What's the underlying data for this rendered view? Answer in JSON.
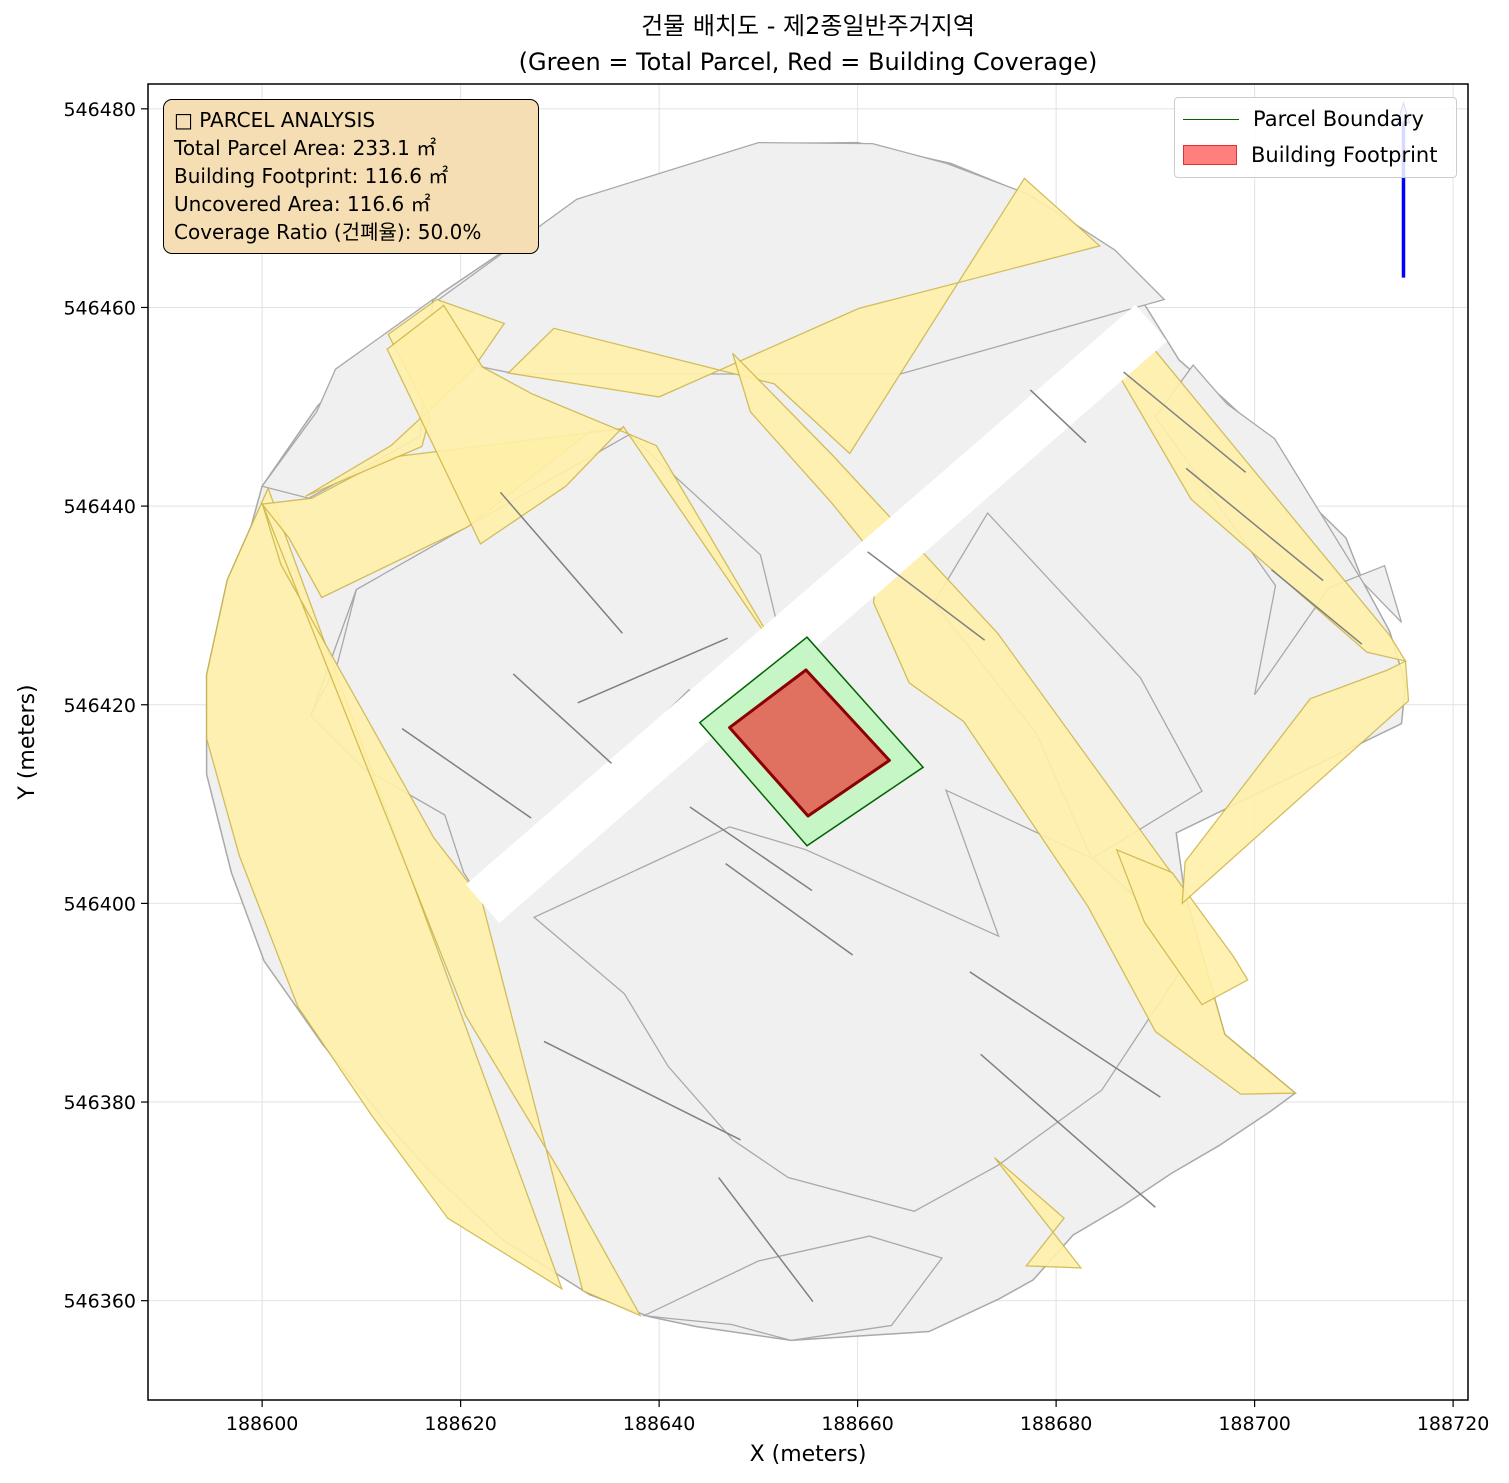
{
  "chart_data": {
    "type": "map",
    "title": "건물 배치도 - 제2종일반주거지역",
    "subtitle": "(Green = Total Parcel, Red = Building Coverage)",
    "xlabel": "X (meters)",
    "ylabel": "Y (meters)",
    "xlim": [
      188588.5,
      188721.5
    ],
    "ylim": [
      546350,
      546482.5
    ],
    "xticks": [
      188600,
      188620,
      188640,
      188660,
      188680,
      188700,
      188720
    ],
    "yticks": [
      546360,
      546380,
      546400,
      546420,
      546440,
      546460,
      546480
    ],
    "grid": true,
    "legend_position": "top-right",
    "legend": [
      {
        "label": "Parcel Boundary",
        "kind": "line",
        "color": "#006400"
      },
      {
        "label": "Building Footprint",
        "kind": "patch",
        "color": "#ff0000"
      }
    ],
    "info_box": {
      "lines": [
        "□ PARCEL ANALYSIS",
        "Total Parcel Area: 233.1 ㎡",
        "Building Footprint: 116.6 ㎡",
        "Uncovered Area: 116.6 ㎡",
        "Coverage Ratio (건폐율): 50.0%"
      ],
      "total_parcel_area_m2": 233.1,
      "building_footprint_m2": 116.6,
      "uncovered_area_m2": 116.6,
      "coverage_ratio_pct": 50.0
    },
    "colors": {
      "parcel_fill": "#c6f5c6",
      "parcel_edge": "#006400",
      "building_fill": "#e07060",
      "building_edge": "#8b0000",
      "road_fill": "#fff0a8",
      "road_edge": "#c8b040",
      "block_fill": "#f0f0f0",
      "block_edge": "#a9a9a9",
      "north_arrow": "#0000ff"
    },
    "target_parcel": [
      [
        188644.1,
        546418.2
      ],
      [
        188654.9,
        546426.8
      ],
      [
        188666.6,
        546413.7
      ],
      [
        188654.9,
        546405.8
      ]
    ],
    "building_footprint": [
      [
        188647.1,
        546417.7
      ],
      [
        188654.8,
        546423.5
      ],
      [
        188663.2,
        546414.4
      ],
      [
        188655.0,
        546408.8
      ]
    ],
    "context_outline": [
      [
        188594.4,
        546416.6
      ],
      [
        188594.4,
        546413.0
      ],
      [
        188596.9,
        546403.1
      ],
      [
        188600.2,
        546394.2
      ],
      [
        188606.1,
        546385.8
      ],
      [
        188613.5,
        546376.8
      ],
      [
        188616.9,
        546373.0
      ],
      [
        188624.3,
        546366.1
      ],
      [
        188633.0,
        546360.6
      ],
      [
        188639.0,
        546358.4
      ],
      [
        188643.7,
        546357.4
      ],
      [
        188653.3,
        546356.0
      ],
      [
        188667.2,
        546356.9
      ],
      [
        188674.3,
        546360.2
      ],
      [
        188677.7,
        546362.1
      ],
      [
        188681.7,
        546366.6
      ],
      [
        188686.8,
        546369.6
      ],
      [
        188691.6,
        546372.8
      ],
      [
        188696.4,
        546375.6
      ],
      [
        188701.5,
        546379.0
      ],
      [
        188704.1,
        546380.9
      ],
      [
        188697.0,
        546386.8
      ],
      [
        188692.9,
        546401.3
      ],
      [
        188692.1,
        546407.1
      ],
      [
        188714.8,
        546418.1
      ],
      [
        188715.2,
        546422.1
      ],
      [
        188713.6,
        546427.4
      ],
      [
        188711.0,
        546432.2
      ],
      [
        188709.2,
        546436.8
      ],
      [
        188704.9,
        546441.0
      ],
      [
        188701.1,
        546446.9
      ],
      [
        188696.9,
        546450.8
      ],
      [
        188692.4,
        546454.7
      ],
      [
        188689.1,
        546460.0
      ],
      [
        188685.2,
        546465.5
      ],
      [
        188677.0,
        546471.4
      ],
      [
        188669.4,
        546474.5
      ],
      [
        188660.0,
        546476.6
      ],
      [
        188650.2,
        546476.5
      ],
      [
        188632.2,
        546471.0
      ],
      [
        188618.0,
        546461.4
      ],
      [
        188613.0,
        546457.2
      ],
      [
        188605.6,
        546450.1
      ],
      [
        188600.0,
        546442.0
      ],
      [
        188598.9,
        546438.0
      ],
      [
        188596.5,
        546432.6
      ],
      [
        188594.4,
        546423.0
      ]
    ],
    "blocks": [
      [
        [
          188638.5,
          546358.5
        ],
        [
          188641.2,
          546358.2
        ],
        [
          188647.3,
          546357.6
        ],
        [
          188653.3,
          546356.0
        ],
        [
          188663.4,
          546357.5
        ],
        [
          188668.5,
          546364.3
        ],
        [
          188661.2,
          546366.5
        ],
        [
          188650.0,
          546364.0
        ]
      ],
      [
        [
          188615.9,
          546447.0
        ],
        [
          188617.2,
          546460.8
        ],
        [
          188607.4,
          546453.8
        ],
        [
          188605.5,
          546449.5
        ],
        [
          188600.0,
          546442.0
        ],
        [
          188604.7,
          546440.8
        ]
      ],
      [
        [
          188625.6,
          546453.3
        ],
        [
          188621.7,
          546454.1
        ],
        [
          188617.8,
          546460.8
        ],
        [
          188631.7,
          546470.9
        ],
        [
          188650.0,
          546476.6
        ],
        [
          188661.5,
          546476.5
        ],
        [
          188669.0,
          546474.5
        ],
        [
          188677.2,
          546471.4
        ],
        [
          188685.9,
          546465.8
        ],
        [
          188690.9,
          546460.8
        ],
        [
          188664.3,
          546453.3
        ],
        [
          188649.7,
          546453.3
        ]
      ],
      [
        [
          188700.0,
          546421.0
        ],
        [
          188707.5,
          546431.8
        ],
        [
          188713.1,
          546434.0
        ],
        [
          188714.8,
          546428.3
        ],
        [
          188711.0,
          546432.2
        ],
        [
          188702.0,
          546446.8
        ],
        [
          188697.2,
          546450.3
        ],
        [
          188693.8,
          546454.2
        ],
        [
          188690.0,
          546449.0
        ],
        [
          188702.1,
          546432.0
        ]
      ],
      [
        [
          188609.5,
          546431.6
        ],
        [
          188604.9,
          546418.9
        ],
        [
          188610.2,
          546413.6
        ],
        [
          188618.4,
          546408.9
        ],
        [
          188620.3,
          546403.1
        ],
        [
          188622.0,
          546400.5
        ],
        [
          188637.6,
          546416.2
        ],
        [
          188643.0,
          546421.5
        ],
        [
          188647.5,
          546416.6
        ],
        [
          188652.5,
          546425.6
        ],
        [
          188650.2,
          546435.1
        ],
        [
          188637.0,
          546447.2
        ]
      ],
      [
        [
          188607.6,
          546424.2
        ],
        [
          188604.9,
          546418.9
        ],
        [
          188609.5,
          546431.6
        ]
      ],
      [
        [
          188647.1,
          546407.7
        ],
        [
          188654.8,
          546405.4
        ],
        [
          188674.2,
          546396.7
        ],
        [
          188668.9,
          546411.4
        ],
        [
          188683.7,
          546404.5
        ],
        [
          188693.9,
          546395.3
        ],
        [
          188684.6,
          546381.2
        ],
        [
          188674.1,
          546373.6
        ],
        [
          188665.7,
          546369.0
        ],
        [
          188653.0,
          546372.4
        ],
        [
          188647.4,
          546376.2
        ],
        [
          188640.9,
          546383.6
        ],
        [
          188636.5,
          546390.9
        ],
        [
          188627.4,
          546398.6
        ]
      ],
      [
        [
          188673.1,
          546439.3
        ],
        [
          188688.5,
          546422.7
        ],
        [
          188694.7,
          546411.3
        ],
        [
          188683.6,
          546404.5
        ],
        [
          188678.0,
          546417.1
        ],
        [
          188667.7,
          546430.3
        ]
      ]
    ],
    "roads": [
      [
        [
          188594.4,
          546423.0
        ],
        [
          188596.5,
          546432.6
        ],
        [
          188600.6,
          546441.8
        ],
        [
          188630.2,
          546361.2
        ],
        [
          188618.7,
          546368.3
        ],
        [
          188611.0,
          546378.7
        ],
        [
          188603.6,
          546389.6
        ],
        [
          188597.7,
          546404.8
        ],
        [
          188594.4,
          546416.6
        ]
      ],
      [
        [
          188600.0,
          546440.3
        ],
        [
          188601.9,
          546434.1
        ],
        [
          188617.3,
          546406.6
        ],
        [
          188622.1,
          546400.4
        ],
        [
          188632.3,
          546361.0
        ],
        [
          188638.1,
          546358.5
        ],
        [
          188630.0,
          546373.0
        ],
        [
          188620.5,
          546388.7
        ]
      ],
      [
        [
          188600.0,
          546440.2
        ],
        [
          188605.0,
          546440.8
        ],
        [
          188612.8,
          546444.9
        ],
        [
          188636.4,
          546447.8
        ],
        [
          188633.0,
          546447.5
        ],
        [
          188620.7,
          546437.9
        ],
        [
          188606.0,
          546430.8
        ],
        [
          188602.7,
          546436.8
        ]
      ],
      [
        [
          188617.6,
          546460.8
        ],
        [
          188612.7,
          546457.3
        ],
        [
          188616.9,
          546449.0
        ],
        [
          188616.1,
          546446.0
        ],
        [
          188604.4,
          546441.0
        ],
        [
          188613.0,
          546446.1
        ],
        [
          188621.1,
          546453.6
        ],
        [
          188624.4,
          546458.4
        ]
      ],
      [
        [
          188612.6,
          546455.8
        ],
        [
          188618.3,
          546460.2
        ],
        [
          188622.2,
          546454.0
        ],
        [
          188627.2,
          546451.3
        ],
        [
          188639.7,
          546446.1
        ],
        [
          188652.5,
          546424.5
        ],
        [
          188636.4,
          546448.0
        ],
        [
          188630.6,
          546442.0
        ],
        [
          188622.0,
          546436.2
        ]
      ],
      [
        [
          188624.8,
          546453.4
        ],
        [
          188629.4,
          546457.9
        ],
        [
          188651.6,
          546452.3
        ],
        [
          188659.2,
          546445.3
        ],
        [
          188676.8,
          546473.0
        ],
        [
          188684.4,
          546466.2
        ],
        [
          188660.1,
          546459.9
        ],
        [
          188640.0,
          546451.0
        ]
      ],
      [
        [
          188647.4,
          546455.4
        ],
        [
          188649.2,
          546449.5
        ],
        [
          188657.4,
          546440.3
        ],
        [
          188662.1,
          546434.5
        ],
        [
          188661.6,
          546430.3
        ],
        [
          188665.2,
          546422.2
        ],
        [
          188670.7,
          546418.3
        ],
        [
          188683.2,
          546399.7
        ],
        [
          188690.0,
          546387.1
        ],
        [
          188698.6,
          546380.8
        ],
        [
          188704.1,
          546380.9
        ],
        [
          188697.0,
          546386.8
        ],
        [
          188692.9,
          546401.3
        ],
        [
          188674.1,
          546427.2
        ],
        [
          188657.5,
          546445.1
        ]
      ],
      [
        [
          188686.1,
          546405.4
        ],
        [
          188691.7,
          546403.1
        ],
        [
          188697.9,
          546394.6
        ],
        [
          188699.3,
          546392.3
        ],
        [
          188694.7,
          546389.8
        ],
        [
          188688.9,
          546398.1
        ]
      ],
      [
        [
          188692.7,
          546400.0
        ],
        [
          188715.5,
          546420.4
        ],
        [
          188715.2,
          546424.4
        ],
        [
          188713.4,
          546423.5
        ],
        [
          188705.6,
          546420.6
        ],
        [
          188693.0,
          546404.2
        ]
      ],
      [
        [
          188689.2,
          546456.6
        ],
        [
          188713.6,
          546427.0
        ],
        [
          188715.2,
          546424.4
        ],
        [
          188711.3,
          546425.3
        ],
        [
          188693.6,
          546440.7
        ],
        [
          188686.6,
          546452.7
        ]
      ],
      [
        [
          188680.8,
          546368.3
        ],
        [
          188673.8,
          546374.4
        ],
        [
          188682.5,
          546363.3
        ],
        [
          188677.0,
          546363.5
        ]
      ]
    ],
    "lot_lines": [
      [
        [
          188631.8,
          546420.2
        ],
        [
          188646.9,
          546426.7
        ]
      ],
      [
        [
          188625.3,
          546423.1
        ],
        [
          188635.2,
          546414.1
        ]
      ],
      [
        [
          188614.1,
          546417.6
        ],
        [
          188627.1,
          546408.6
        ]
      ],
      [
        [
          188624.0,
          546441.4
        ],
        [
          188636.3,
          546427.2
        ]
      ],
      [
        [
          188643.1,
          546409.7
        ],
        [
          188655.4,
          546401.3
        ]
      ],
      [
        [
          188646.7,
          546404.0
        ],
        [
          188659.5,
          546394.8
        ]
      ],
      [
        [
          188628.4,
          546386.1
        ],
        [
          188648.2,
          546376.2
        ]
      ],
      [
        [
          188646.0,
          546372.4
        ],
        [
          188655.5,
          546359.9
        ]
      ],
      [
        [
          188672.4,
          546384.8
        ],
        [
          188690.0,
          546369.4
        ]
      ],
      [
        [
          188671.3,
          546393.1
        ],
        [
          188690.5,
          546380.5
        ]
      ],
      [
        [
          188661.0,
          546435.4
        ],
        [
          188672.8,
          546426.5
        ]
      ],
      [
        [
          188677.4,
          546451.7
        ],
        [
          188683.0,
          546446.4
        ]
      ],
      [
        [
          188686.8,
          546453.5
        ],
        [
          188699.1,
          546443.4
        ]
      ],
      [
        [
          188693.1,
          546443.8
        ],
        [
          188706.9,
          546432.5
        ]
      ],
      [
        [
          188701.7,
          546433.6
        ],
        [
          188710.8,
          546426.1
        ]
      ]
    ],
    "white_corridor": [
      [
        188620.6,
        546401.9
      ],
      [
        188688.0,
        546460.2
      ],
      [
        188691.1,
        546456.6
      ],
      [
        188623.9,
        546398.1
      ]
    ],
    "north_arrow": {
      "x": 188715.0,
      "y_from": 546463.0,
      "y_to": 546480.0
    }
  }
}
